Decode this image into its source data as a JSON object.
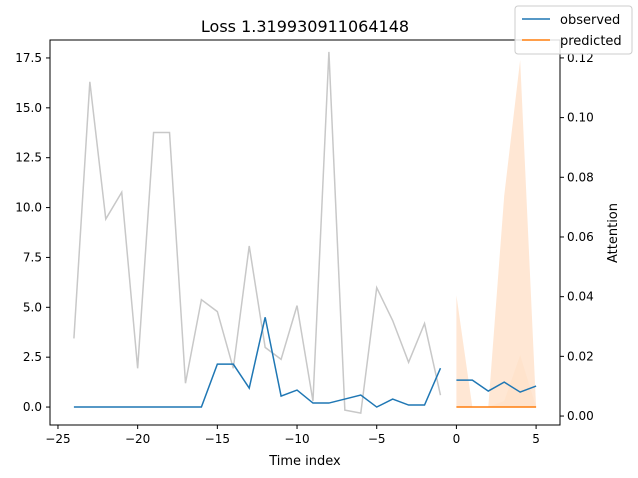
{
  "chart_data": {
    "type": "line",
    "title": "Loss 1.319930911064148",
    "xlabel": "Time index",
    "ylabel": "",
    "y2label": "Attention",
    "xlim": [
      -25.5,
      6.5
    ],
    "ylim": [
      -0.9,
      18.4
    ],
    "y2lim": [
      -0.003,
      0.126
    ],
    "x_ticks": [
      -25,
      -20,
      -15,
      -10,
      -5,
      0,
      5
    ],
    "y_ticks": [
      0.0,
      2.5,
      5.0,
      7.5,
      10.0,
      12.5,
      15.0,
      17.5
    ],
    "y_tick_labels": [
      "0.0",
      "2.5",
      "5.0",
      "7.5",
      "10.0",
      "12.5",
      "15.0",
      "17.5"
    ],
    "y2_ticks": [
      0.0,
      0.02,
      0.04,
      0.06,
      0.08,
      0.1,
      0.12
    ],
    "y2_tick_labels": [
      "0.00",
      "0.02",
      "0.04",
      "0.06",
      "0.08",
      "0.10",
      "0.12"
    ],
    "legend_position": "top-right",
    "colors": {
      "observed": "#1f77b4",
      "predicted": "#ff7f0e",
      "attention": "#c8c8c8",
      "band": "#ffe3cc"
    },
    "series": [
      {
        "name": "observed",
        "x": [
          -24,
          -23,
          -22,
          -21,
          -20,
          -19,
          -18,
          -17,
          -16,
          -15,
          -14,
          -13,
          -12,
          -11,
          -10,
          -9,
          -8,
          -7,
          -6,
          -5,
          -4,
          -3,
          -2,
          -1
        ],
        "values": [
          0,
          0,
          0,
          0,
          0,
          0,
          0,
          0,
          0,
          2.15,
          2.15,
          0.95,
          4.5,
          0.55,
          0.85,
          0.2,
          0.2,
          0.4,
          0.6,
          0,
          0.4,
          0.1,
          0.1,
          1.95
        ]
      },
      {
        "name": "observed",
        "x": [
          0,
          1,
          2,
          3,
          4,
          5
        ],
        "values": [
          1.35,
          1.35,
          0.8,
          1.25,
          0.75,
          1.05
        ]
      },
      {
        "name": "predicted",
        "x": [
          0,
          1,
          2,
          3,
          4,
          5
        ],
        "values": [
          0,
          0,
          0,
          0,
          0,
          0
        ]
      }
    ],
    "attention": {
      "x": [
        -24,
        -23,
        -22,
        -21,
        -20,
        -19,
        -18,
        -17,
        -16,
        -15,
        -14,
        -13,
        -12,
        -11,
        -10,
        -9,
        -8,
        -7,
        -6,
        -5,
        -4,
        -3,
        -2,
        -1
      ],
      "values": [
        0.026,
        0.112,
        0.066,
        0.075,
        0.016,
        0.095,
        0.095,
        0.011,
        0.039,
        0.035,
        0.016,
        0.057,
        0.023,
        0.019,
        0.037,
        0.005,
        0.122,
        0.002,
        0.001,
        0.043,
        0.032,
        0.018,
        0.031,
        0.007
      ]
    },
    "prediction_interval": {
      "x": [
        0,
        1,
        2,
        3,
        4,
        5
      ],
      "outer_upper": [
        5.6,
        0,
        0,
        10.6,
        17.4,
        0
      ],
      "outer_lower": [
        0,
        0,
        0,
        0,
        0,
        0
      ],
      "inner_upper": [
        0,
        0,
        0,
        0.3,
        2.6,
        0
      ],
      "inner_lower": [
        0,
        0,
        0,
        0,
        0,
        0
      ]
    }
  }
}
